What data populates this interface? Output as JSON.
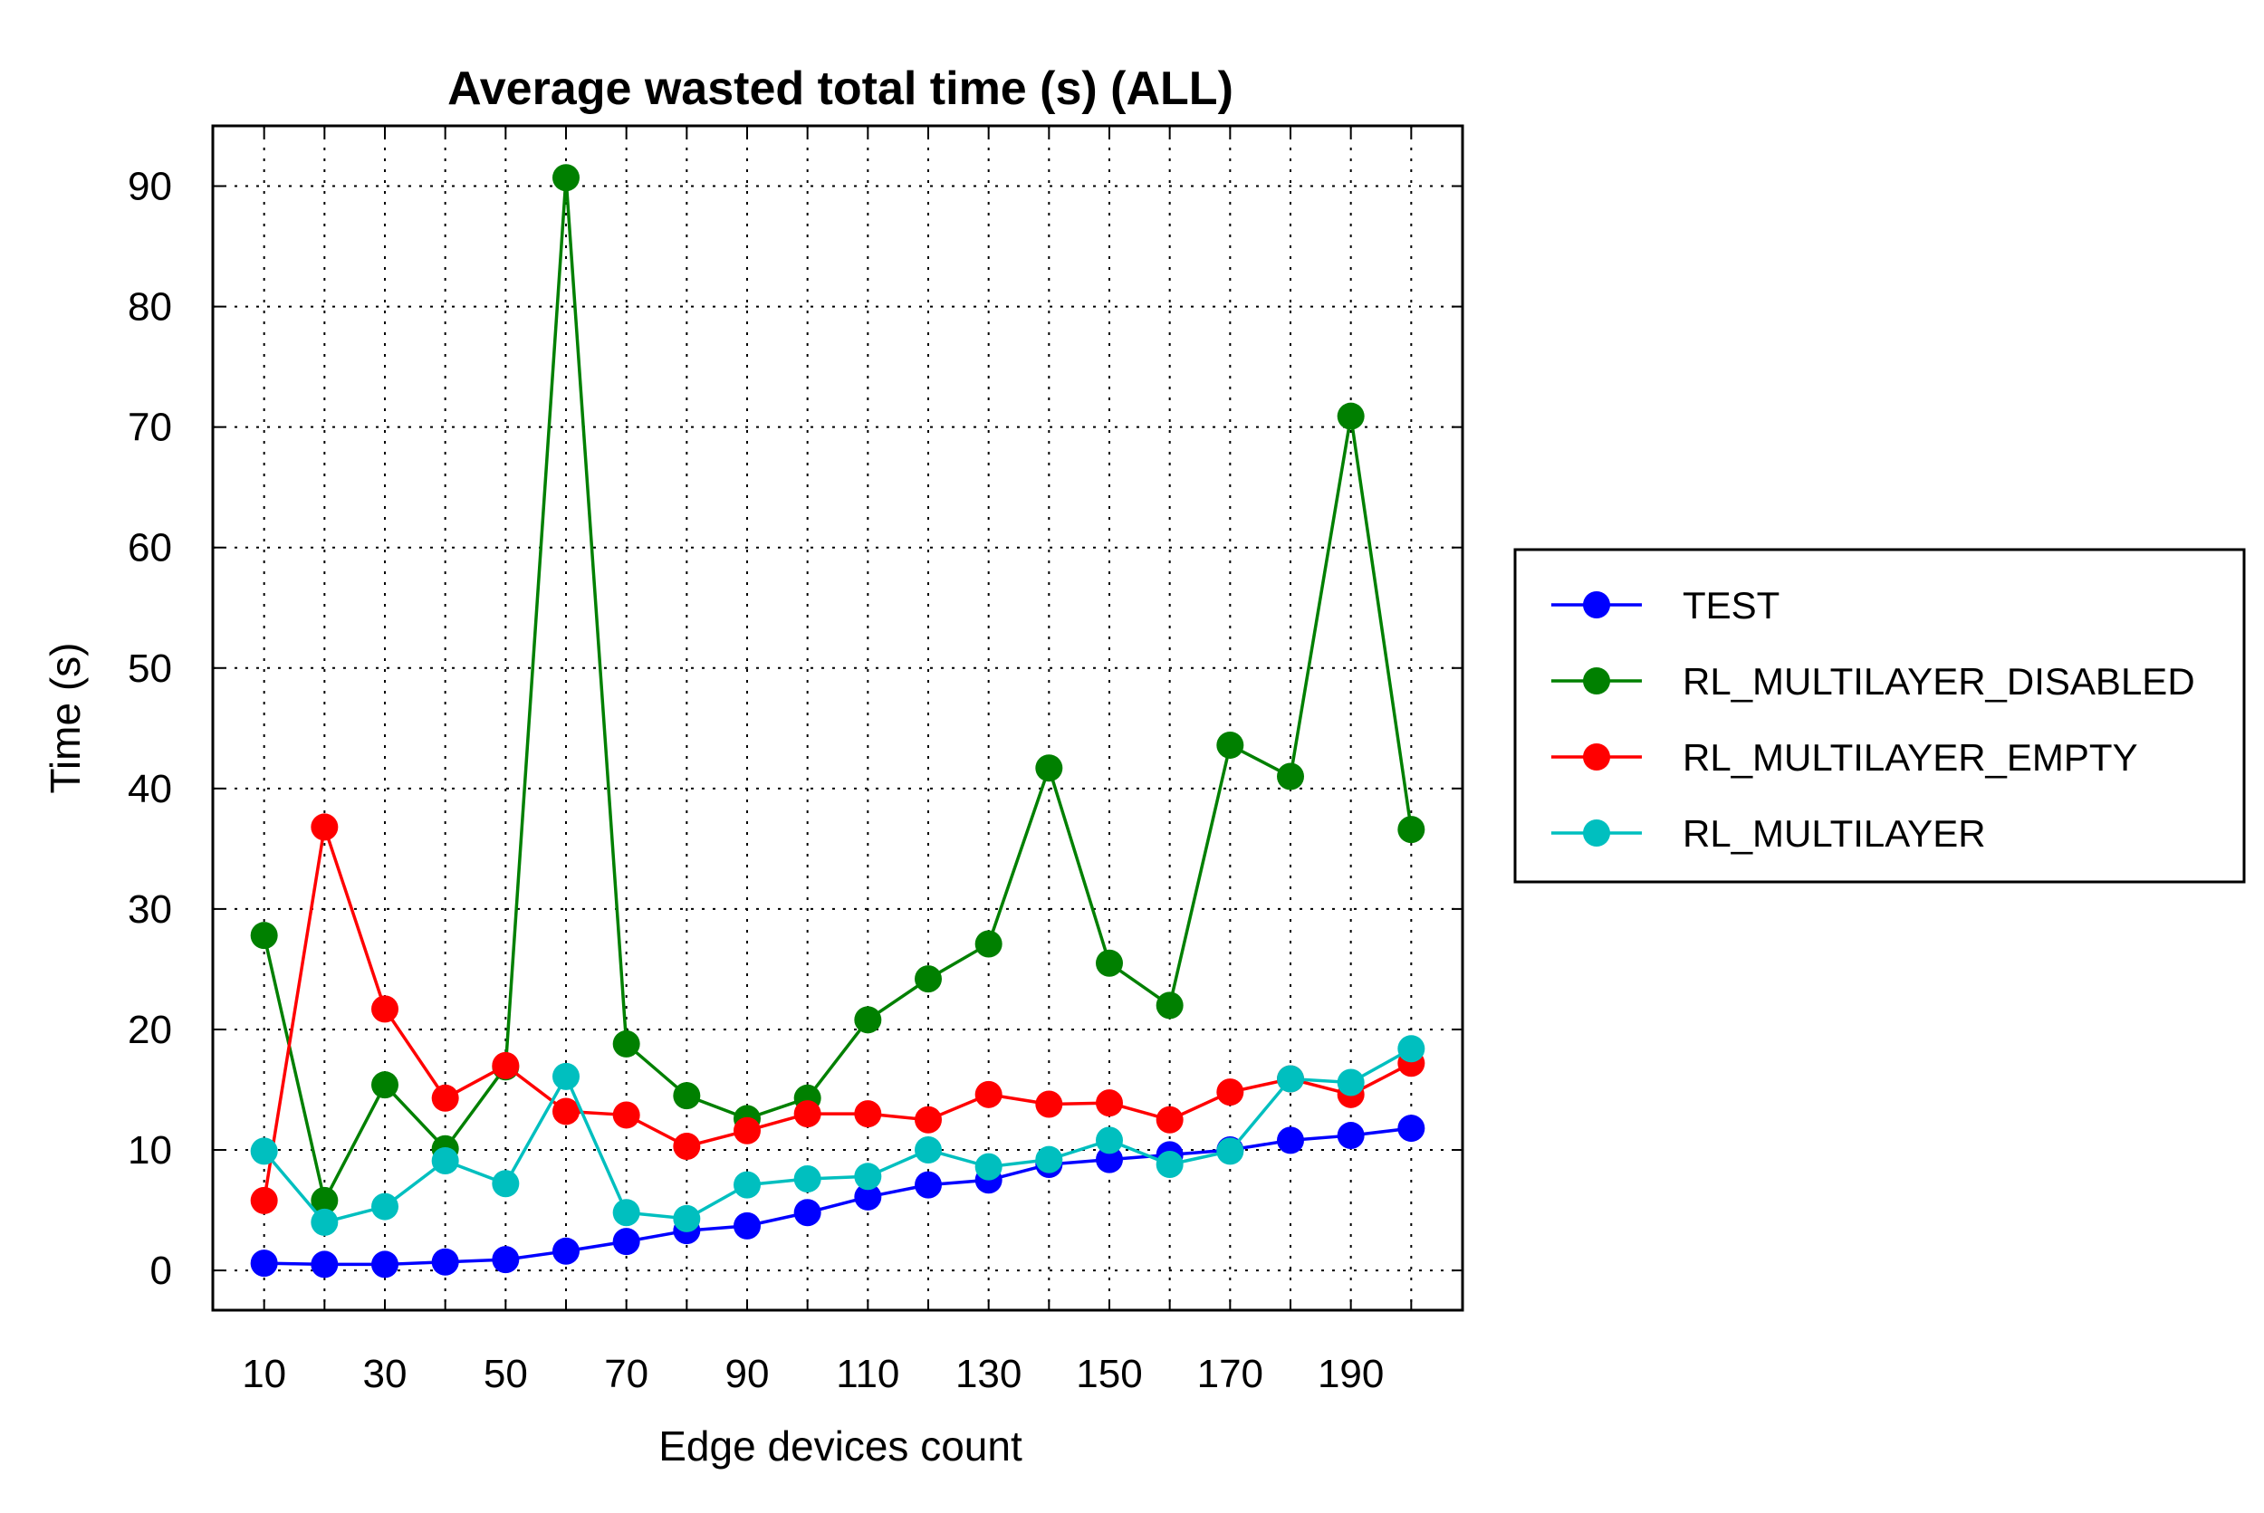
{
  "chart_data": {
    "type": "line",
    "title": "Average wasted total time (s) (ALL)",
    "xlabel": "Edge devices count",
    "ylabel": "Time (s)",
    "xlim": [
      1.5,
      208.5
    ],
    "ylim": [
      -3.3,
      95
    ],
    "x_ticks": [
      10,
      30,
      50,
      70,
      90,
      110,
      130,
      150,
      170,
      190
    ],
    "y_ticks": [
      0,
      10,
      20,
      30,
      40,
      50,
      60,
      70,
      80,
      90
    ],
    "grid": true,
    "legend_position": "right",
    "x": [
      10,
      20,
      30,
      40,
      50,
      60,
      70,
      80,
      90,
      100,
      110,
      120,
      130,
      140,
      150,
      160,
      170,
      180,
      190,
      200
    ],
    "series": [
      {
        "name": "TEST",
        "color": "#0000ff",
        "values": [
          0.6,
          0.5,
          0.5,
          0.7,
          0.9,
          1.6,
          2.4,
          3.3,
          3.7,
          4.8,
          6.1,
          7.1,
          7.5,
          8.8,
          9.2,
          9.6,
          10.0,
          10.8,
          11.2,
          11.8
        ]
      },
      {
        "name": "RL_MULTILAYER_DISABLED",
        "color": "#008000",
        "values": [
          27.8,
          5.8,
          15.4,
          10.1,
          16.9,
          90.7,
          18.8,
          14.5,
          12.6,
          14.3,
          20.8,
          24.2,
          27.1,
          41.7,
          25.5,
          22.0,
          43.6,
          41.0,
          70.9,
          36.6
        ]
      },
      {
        "name": "RL_MULTILAYER_EMPTY",
        "color": "#ff0000",
        "values": [
          5.8,
          36.8,
          21.7,
          14.3,
          17.0,
          13.2,
          12.9,
          10.3,
          11.6,
          13.0,
          13.0,
          12.5,
          14.6,
          13.8,
          13.9,
          12.5,
          14.8,
          15.9,
          14.6,
          17.2
        ]
      },
      {
        "name": "RL_MULTILAYER",
        "color": "#00bfbf",
        "values": [
          9.9,
          4.0,
          5.3,
          9.1,
          7.2,
          16.1,
          4.8,
          4.3,
          7.1,
          7.6,
          7.8,
          10.0,
          8.6,
          9.2,
          10.8,
          8.8,
          9.9,
          15.9,
          15.6,
          18.4
        ]
      }
    ]
  }
}
